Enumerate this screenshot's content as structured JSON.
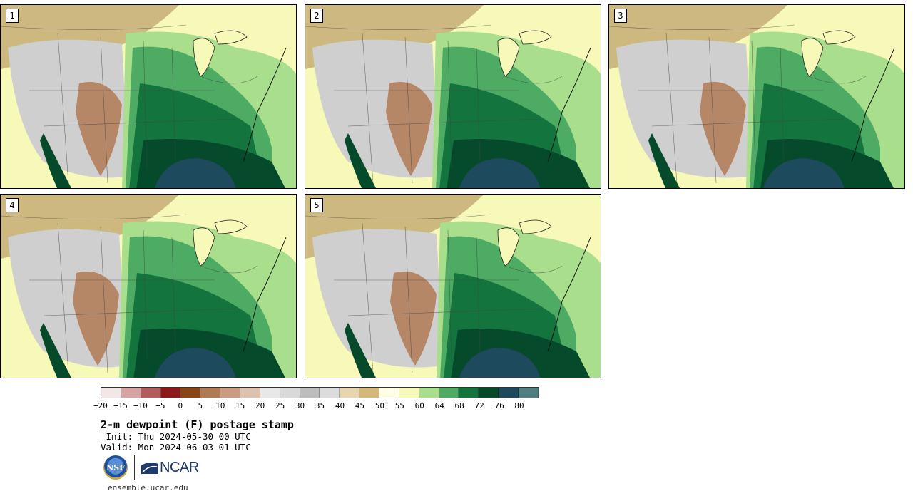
{
  "panels": [
    {
      "label": "1"
    },
    {
      "label": "2"
    },
    {
      "label": "3"
    },
    {
      "label": "4"
    },
    {
      "label": "5"
    }
  ],
  "colorbar": {
    "colors": [
      "#f3e6e6",
      "#d6a3a3",
      "#b35c5c",
      "#8b1a1a",
      "#8b4513",
      "#b07a55",
      "#c99c80",
      "#ddc2b0",
      "#e8e8e8",
      "#d9d9d9",
      "#bdbdbd",
      "#dcdcdc",
      "#e6d5ad",
      "#d4b87a",
      "#ffffe6",
      "#f6f9b8",
      "#a8de8c",
      "#4dab63",
      "#13743d",
      "#054a2b",
      "#1d4a5c",
      "#4f7f80"
    ],
    "ticks": [
      "−20",
      "−15",
      "−10",
      "−5",
      "0",
      "5",
      "10",
      "15",
      "20",
      "25",
      "30",
      "35",
      "40",
      "45",
      "50",
      "55",
      "60",
      "64",
      "68",
      "72",
      "76",
      "80"
    ]
  },
  "title": "2-m dewpoint (F) postage stamp",
  "init": " Init: Thu 2024-05-30 00 UTC",
  "valid": "Valid: Mon 2024-06-03 01 UTC",
  "logos": {
    "nsf": "NSF",
    "ncar": "NCAR"
  },
  "footer": "ensemble.ucar.edu",
  "legend_colors": {
    "dry_west": "#cfcfcf",
    "tan_north": "#c9b07a",
    "brown_sw": "#b07a55",
    "humid_south": "#13743d",
    "very_humid": "#054a2b",
    "gulf": "#1d4a5c",
    "moderate": "#4dab63",
    "light": "#a8de8c",
    "pale": "#f6f9b8"
  }
}
